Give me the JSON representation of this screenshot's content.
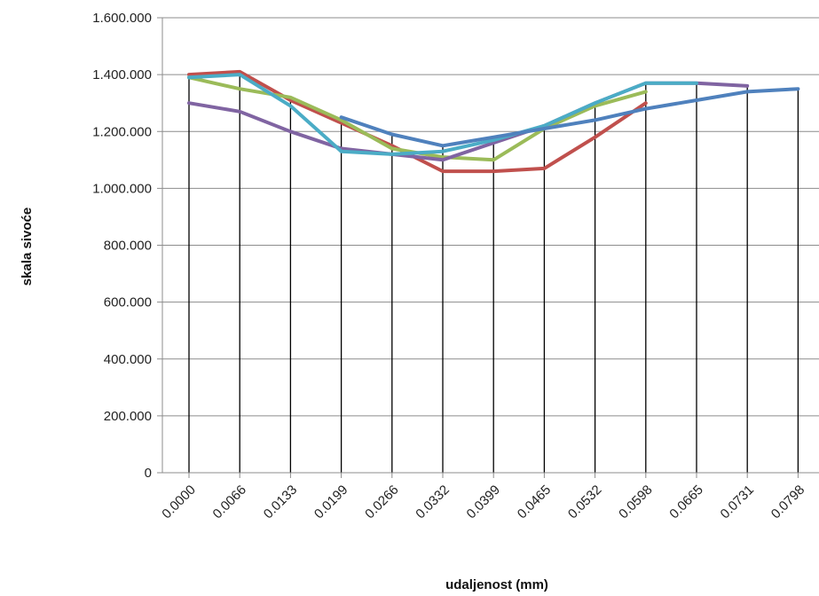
{
  "chart_data": {
    "type": "line",
    "title": "",
    "xlabel": "udaljenost (mm)",
    "ylabel": "skala sivoće",
    "ylim": [
      0,
      1600000
    ],
    "y_ticks": [
      0,
      200000,
      400000,
      600000,
      800000,
      1000000,
      1200000,
      1400000,
      1600000
    ],
    "y_tick_labels": [
      "0",
      "200.000",
      "400.000",
      "600.000",
      "800.000",
      "1.000.000",
      "1.200.000",
      "1.400.000",
      "1.600.000"
    ],
    "categories": [
      "0.0000",
      "0.0066",
      "0.0133",
      "0.0199",
      "0.0266",
      "0.0332",
      "0.0399",
      "0.0465",
      "0.0532",
      "0.0598",
      "0.0665",
      "0.0731",
      "0.0798"
    ],
    "grid": "horizontal gridlines + vertical drop lines",
    "legend": "none",
    "series": [
      {
        "color": "#c0504d",
        "values": [
          1400000,
          1410000,
          1310000,
          1230000,
          1150000,
          1060000,
          1060000,
          1070000,
          1180000,
          1300000,
          null,
          null,
          null
        ]
      },
      {
        "color": "#9bbb59",
        "values": [
          1390000,
          1350000,
          1320000,
          1240000,
          1140000,
          1110000,
          1100000,
          1210000,
          1290000,
          1340000,
          null,
          null,
          null
        ]
      },
      {
        "color": "#8064a2",
        "values": [
          1300000,
          1270000,
          1200000,
          1140000,
          1120000,
          1100000,
          1160000,
          1220000,
          1300000,
          1370000,
          1370000,
          1360000,
          null
        ]
      },
      {
        "color": "#4bacc6",
        "values": [
          1390000,
          1400000,
          1290000,
          1130000,
          1120000,
          1130000,
          1170000,
          1220000,
          1300000,
          1370000,
          1370000,
          null,
          null
        ]
      },
      {
        "color": "#4f81bd",
        "values": [
          null,
          null,
          null,
          1250000,
          1190000,
          1150000,
          1180000,
          1210000,
          1240000,
          1280000,
          1310000,
          1340000,
          1350000
        ]
      }
    ]
  }
}
